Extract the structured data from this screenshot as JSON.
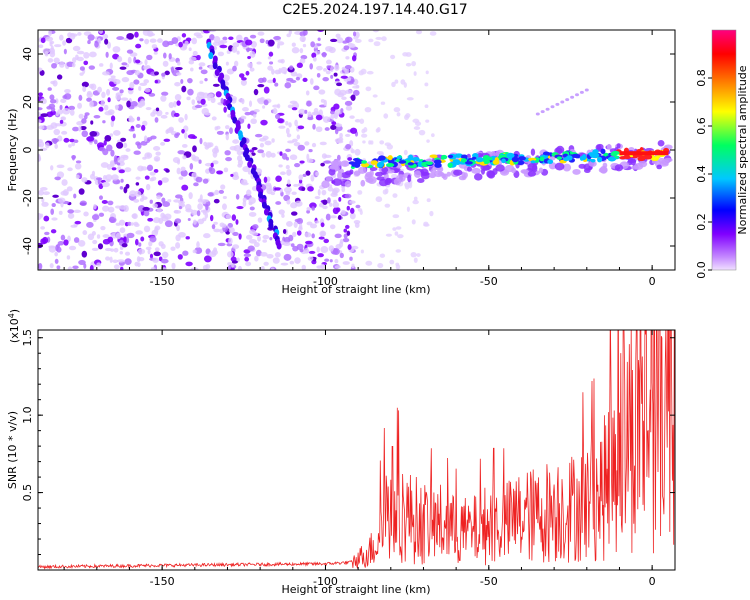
{
  "title": "C2E5.2024.197.14.40.G17",
  "chart_data": [
    {
      "type": "heatmap",
      "xlabel": "Height of straight line (km)",
      "ylabel": "Frequency (Hz)",
      "xlim": [
        -188,
        7
      ],
      "ylim": [
        -50,
        50
      ],
      "xticks": [
        -150,
        -100,
        -50,
        0
      ],
      "yticks": [
        40,
        20,
        0,
        -20,
        -40
      ],
      "colorbar": {
        "label": "Normalized spectral amplitude",
        "range": [
          0.0,
          1.0
        ],
        "ticks": [
          "0.0",
          "0.2",
          "0.4",
          "0.6",
          "0.8"
        ],
        "colors": [
          "#f0e0ff",
          "#8000ff",
          "#0000ff",
          "#00c8ff",
          "#00ff60",
          "#ffff00",
          "#ff8000",
          "#ff0000",
          "#ff0080"
        ]
      },
      "features": {
        "noise_region_x": [
          -188,
          -90
        ],
        "descending_trace": {
          "x": [
            -136,
            -114
          ],
          "y": [
            45,
            -40
          ]
        },
        "main_band": {
          "x": [
            -100,
            5
          ],
          "y": [
            -12,
            0
          ]
        },
        "faint_upper_trace": {
          "x": [
            -35,
            -20
          ],
          "y": [
            15,
            25
          ]
        }
      }
    },
    {
      "type": "line",
      "xlabel": "Height of straight line (km)",
      "ylabel": "SNR (10 * v/v)",
      "y_multiplier": "(x10",
      "y_multiplier_exp": "4",
      "y_multiplier_close": ")",
      "xlim": [
        -188,
        7
      ],
      "ylim": [
        0,
        1.55
      ],
      "xticks": [
        -150,
        -100,
        -50,
        0
      ],
      "yticks": [
        0.5,
        1.0,
        1.5
      ],
      "ytick_labels": [
        "0.5",
        "1.0",
        "1.5"
      ],
      "series": [
        {
          "color": "#ee2222",
          "x": [
            -188,
            -150,
            -100,
            -92,
            -88,
            -85,
            -82,
            -80,
            -78,
            -75,
            -70,
            -65,
            -60,
            -55,
            -50,
            -45,
            -40,
            -35,
            -30,
            -25,
            -20,
            -15,
            -10,
            -5,
            0,
            2,
            4,
            6,
            7
          ],
          "y": [
            0.02,
            0.03,
            0.04,
            0.05,
            0.1,
            0.15,
            0.35,
            0.45,
            0.4,
            0.35,
            0.3,
            0.3,
            0.25,
            0.25,
            0.3,
            0.3,
            0.35,
            0.35,
            0.4,
            0.4,
            0.45,
            0.5,
            0.85,
            0.95,
            1.05,
            1.12,
            1.15,
            1.3,
            1.5
          ]
        }
      ]
    }
  ]
}
